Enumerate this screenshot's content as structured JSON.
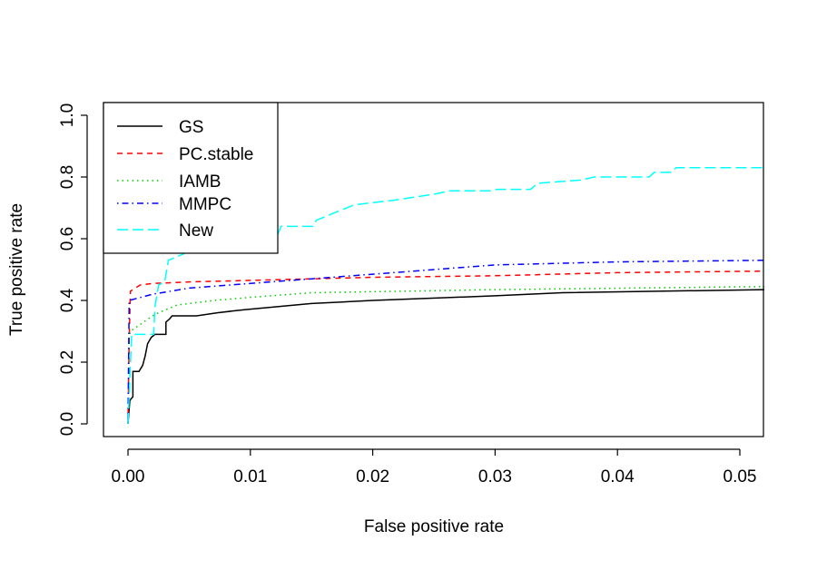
{
  "chart_data": {
    "type": "line",
    "title": "",
    "xlabel": "False positive rate",
    "ylabel": "True positive rate",
    "xlim": [
      -0.002,
      0.052
    ],
    "ylim": [
      -0.04,
      1.04
    ],
    "xticks": [
      "0.00",
      "0.01",
      "0.02",
      "0.03",
      "0.04",
      "0.05"
    ],
    "yticks": [
      "0.0",
      "0.2",
      "0.4",
      "0.6",
      "0.8",
      "1.0"
    ],
    "grid": false,
    "legend_position": "top-left",
    "series": [
      {
        "name": "GS",
        "color": "#000000",
        "linestyle": "solid",
        "points": [
          [
            0,
            0
          ],
          [
            0.00015,
            0.076
          ],
          [
            0.0004,
            0.088
          ],
          [
            0.0004,
            0.17
          ],
          [
            0.0009,
            0.17
          ],
          [
            0.0012,
            0.19
          ],
          [
            0.0014,
            0.22
          ],
          [
            0.0016,
            0.26
          ],
          [
            0.0019,
            0.28
          ],
          [
            0.0022,
            0.29
          ],
          [
            0.0031,
            0.29
          ],
          [
            0.0031,
            0.33
          ],
          [
            0.0034,
            0.34
          ],
          [
            0.0036,
            0.35
          ],
          [
            0.0056,
            0.35
          ],
          [
            0.0073,
            0.36
          ],
          [
            0.0095,
            0.37
          ],
          [
            0.015,
            0.39
          ],
          [
            0.02,
            0.4
          ],
          [
            0.03,
            0.415
          ],
          [
            0.0355,
            0.425
          ],
          [
            0.052,
            0.435
          ]
        ]
      },
      {
        "name": "PC.stable",
        "color": "#ff0000",
        "linestyle": "dashed",
        "points": [
          [
            0,
            0
          ],
          [
            0.0001,
            0.28
          ],
          [
            0.0002,
            0.43
          ],
          [
            0.001,
            0.45
          ],
          [
            0.002,
            0.455
          ],
          [
            0.005,
            0.46
          ],
          [
            0.01,
            0.465
          ],
          [
            0.015,
            0.47
          ],
          [
            0.02,
            0.475
          ],
          [
            0.03,
            0.48
          ],
          [
            0.04,
            0.49
          ],
          [
            0.052,
            0.495
          ]
        ]
      },
      {
        "name": "IAMB",
        "color": "#00cd00",
        "linestyle": "dotted",
        "points": [
          [
            0,
            0
          ],
          [
            0.0001,
            0.28
          ],
          [
            0.0002,
            0.3
          ],
          [
            0.002,
            0.35
          ],
          [
            0.0025,
            0.36
          ],
          [
            0.004,
            0.385
          ],
          [
            0.007,
            0.4
          ],
          [
            0.01,
            0.41
          ],
          [
            0.015,
            0.425
          ],
          [
            0.03,
            0.435
          ],
          [
            0.052,
            0.445
          ]
        ]
      },
      {
        "name": "MMPC",
        "color": "#0000ff",
        "linestyle": "dotdash",
        "points": [
          [
            0,
            0
          ],
          [
            0.0001,
            0.4
          ],
          [
            0.002,
            0.42
          ],
          [
            0.005,
            0.44
          ],
          [
            0.01,
            0.455
          ],
          [
            0.015,
            0.47
          ],
          [
            0.02,
            0.485
          ],
          [
            0.03,
            0.515
          ],
          [
            0.04,
            0.525
          ],
          [
            0.052,
            0.53
          ]
        ]
      },
      {
        "name": "New",
        "color": "#00ffff",
        "linestyle": "longdash",
        "points": [
          [
            0,
            0
          ],
          [
            0.0003,
            0.29
          ],
          [
            0.0021,
            0.29
          ],
          [
            0.0022,
            0.38
          ],
          [
            0.0025,
            0.45
          ],
          [
            0.003,
            0.46
          ],
          [
            0.0033,
            0.53
          ],
          [
            0.0045,
            0.55
          ],
          [
            0.006,
            0.59
          ],
          [
            0.012,
            0.59
          ],
          [
            0.0125,
            0.64
          ],
          [
            0.0151,
            0.64
          ],
          [
            0.0154,
            0.66
          ],
          [
            0.0185,
            0.71
          ],
          [
            0.0218,
            0.725
          ],
          [
            0.0251,
            0.745
          ],
          [
            0.0263,
            0.755
          ],
          [
            0.0296,
            0.755
          ],
          [
            0.0302,
            0.76
          ],
          [
            0.0329,
            0.76
          ],
          [
            0.0335,
            0.78
          ],
          [
            0.037,
            0.79
          ],
          [
            0.0381,
            0.8
          ],
          [
            0.0426,
            0.8
          ],
          [
            0.043,
            0.815
          ],
          [
            0.0444,
            0.815
          ],
          [
            0.0448,
            0.83
          ],
          [
            0.052,
            0.83
          ]
        ]
      }
    ]
  }
}
